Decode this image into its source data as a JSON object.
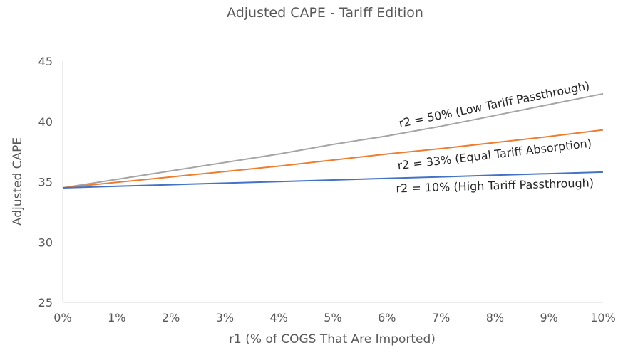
{
  "chart_data": {
    "type": "line",
    "title": "Adjusted CAPE - Tariff Edition",
    "xlabel": "r1 (% of COGS That Are Imported)",
    "ylabel": "Adjusted CAPE",
    "x": [
      0,
      1,
      2,
      3,
      4,
      5,
      6,
      7,
      8,
      9,
      10
    ],
    "x_tick_labels": [
      "0%",
      "1%",
      "2%",
      "3%",
      "4%",
      "5%",
      "6%",
      "7%",
      "8%",
      "9%",
      "10%"
    ],
    "y_tick_labels": [
      "25",
      "30",
      "35",
      "40",
      "45"
    ],
    "ylim": [
      25,
      45
    ],
    "xlim": [
      0,
      10
    ],
    "grid": false,
    "legend": "none",
    "series": [
      {
        "name": "r2 = 50% (Low Tariff Passthrough)",
        "color": "#a5a5a5",
        "values": [
          34.5,
          35.2,
          35.9,
          36.6,
          37.3,
          38.1,
          38.8,
          39.6,
          40.5,
          41.4,
          42.3
        ]
      },
      {
        "name": "r2 = 33% (Equal Tariff Absorption)",
        "color": "#ed7d31",
        "values": [
          34.5,
          34.95,
          35.4,
          35.85,
          36.3,
          36.8,
          37.3,
          37.75,
          38.25,
          38.75,
          39.3
        ]
      },
      {
        "name": "r2 = 10% (High Tariff Passthrough)",
        "color": "#4472c4",
        "values": [
          34.5,
          34.63,
          34.76,
          34.89,
          35.02,
          35.15,
          35.28,
          35.41,
          35.54,
          35.67,
          35.8
        ]
      }
    ]
  }
}
